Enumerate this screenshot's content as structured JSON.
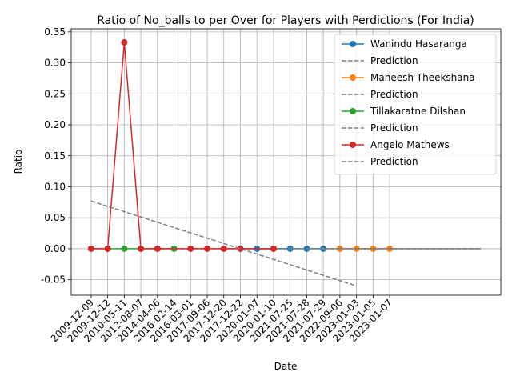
{
  "chart_data": {
    "type": "line",
    "title": "Ratio of No_balls to per Over for Players with Perdictions (For India)",
    "xlabel": "Date",
    "ylabel": "Ratio",
    "categories": [
      "2009-12-09",
      "2009-12-12",
      "2010-05-11",
      "2012-08-07",
      "2014-04-06",
      "2016-02-14",
      "2016-03-01",
      "2017-09-06",
      "2017-12-20",
      "2017-12-22",
      "2020-01-07",
      "2020-01-10",
      "2021-07-25",
      "2021-07-28",
      "2021-07-29",
      "2022-09-06",
      "2023-01-03",
      "2023-01-05",
      "2023-01-07"
    ],
    "ylim": [
      -0.075,
      0.355
    ],
    "yticks": [
      -0.05,
      0.0,
      0.05,
      0.1,
      0.15,
      0.2,
      0.25,
      0.3,
      0.35
    ],
    "grid": true,
    "legend_position": "upper-right",
    "series": [
      {
        "name": "Wanindu Hasaranga",
        "color": "#1f77b4",
        "points": [
          [
            9,
            0
          ],
          [
            10,
            0
          ],
          [
            11,
            0
          ],
          [
            12,
            0
          ],
          [
            13,
            0
          ],
          [
            14,
            0
          ]
        ]
      },
      {
        "name": "Prediction",
        "color": "#808080",
        "style": "dashed",
        "points": [
          [
            14,
            0
          ],
          [
            23.5,
            0
          ]
        ]
      },
      {
        "name": "Maheesh Theekshana",
        "color": "#ff7f0e",
        "points": [
          [
            15,
            0
          ],
          [
            16,
            0
          ],
          [
            17,
            0
          ],
          [
            18,
            0
          ]
        ]
      },
      {
        "name": "Prediction",
        "color": "#808080",
        "style": "dashed",
        "points": [
          [
            14,
            0
          ],
          [
            23.5,
            0
          ]
        ]
      },
      {
        "name": "Tillakaratne Dilshan",
        "color": "#2ca02c",
        "points": [
          [
            0,
            0
          ],
          [
            1,
            0
          ],
          [
            2,
            0
          ],
          [
            3,
            0
          ],
          [
            4,
            0
          ],
          [
            5,
            0
          ]
        ]
      },
      {
        "name": "Prediction",
        "color": "#808080",
        "style": "dashed",
        "points": [
          [
            5,
            0
          ],
          [
            23.5,
            0
          ]
        ]
      },
      {
        "name": "Angelo Mathews",
        "color": "#d62728",
        "points": [
          [
            0,
            0
          ],
          [
            1,
            0
          ],
          [
            2,
            0.333
          ],
          [
            3,
            0
          ],
          [
            4,
            0
          ],
          [
            6,
            0
          ],
          [
            7,
            0
          ],
          [
            8,
            0
          ],
          [
            9,
            0
          ],
          [
            11,
            0
          ]
        ]
      },
      {
        "name": "Prediction",
        "color": "#808080",
        "style": "dashed",
        "points": [
          [
            0,
            0.077
          ],
          [
            16,
            -0.06
          ]
        ]
      }
    ]
  }
}
